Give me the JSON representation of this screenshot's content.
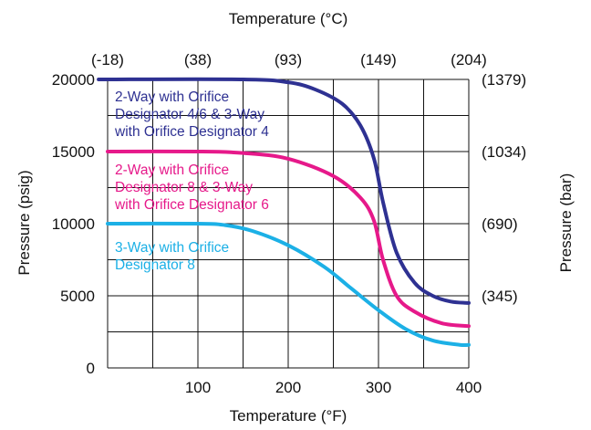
{
  "chart_data": {
    "type": "line",
    "xlabel_bottom": "Temperature (°F)",
    "xlabel_top": "Temperature (°C)",
    "ylabel_left": "Pressure (psig)",
    "ylabel_right": "Pressure (bar)",
    "xlim": [
      0,
      400
    ],
    "ylim": [
      0,
      20000
    ],
    "grid": true,
    "x_ticks_bottom": [
      {
        "value": 100,
        "label": "100"
      },
      {
        "value": 200,
        "label": "200"
      },
      {
        "value": 300,
        "label": "300"
      },
      {
        "value": 400,
        "label": "400"
      }
    ],
    "x_ticks_top": [
      {
        "value": 0,
        "label": "(-18)"
      },
      {
        "value": 100,
        "label": "(38)"
      },
      {
        "value": 200,
        "label": "(93)"
      },
      {
        "value": 300,
        "label": "(149)"
      },
      {
        "value": 400,
        "label": "(204)"
      }
    ],
    "y_ticks_left": [
      {
        "value": 0,
        "label": "0"
      },
      {
        "value": 5000,
        "label": "5000"
      },
      {
        "value": 10000,
        "label": "10000"
      },
      {
        "value": 15000,
        "label": "15000"
      },
      {
        "value": 20000,
        "label": "20000"
      }
    ],
    "y_ticks_right": [
      {
        "value": 5000,
        "label": "(345)"
      },
      {
        "value": 10000,
        "label": "(690)"
      },
      {
        "value": 15000,
        "label": "(1034)"
      },
      {
        "value": 20000,
        "label": "(1379)"
      }
    ],
    "series": [
      {
        "name": "2-Way with Orifice Designator 4/6 & 3-Way with Orifice Designator 4",
        "label_lines": [
          "2-Way with Orifice",
          "Designator 4/6 & 3-Way",
          "with Orifice Designator 4"
        ],
        "color": "#2e3192",
        "x": [
          -10,
          150,
          200,
          230,
          260,
          280,
          295,
          305,
          320,
          340,
          360,
          380,
          400
        ],
        "y": [
          20000,
          20000,
          19800,
          19300,
          18300,
          16800,
          14500,
          11500,
          8000,
          5900,
          5000,
          4600,
          4500
        ]
      },
      {
        "name": "2-Way with Orifice Designator 8 & 3-Way with Orifice Designator 6",
        "label_lines": [
          "2-Way with Orifice",
          "Designator 8 & 3-Way",
          "with Orifice Designator 6"
        ],
        "color": "#e6198a",
        "x": [
          0,
          100,
          150,
          200,
          250,
          280,
          295,
          305,
          320,
          340,
          370,
          400
        ],
        "y": [
          15000,
          15000,
          14900,
          14500,
          13300,
          11800,
          10200,
          7500,
          5000,
          3900,
          3100,
          2900
        ]
      },
      {
        "name": "3-Way with Orifice Designator 8",
        "label_lines": [
          "3-Way with Orifice",
          "Designator 8"
        ],
        "color": "#1cb0e6",
        "x": [
          0,
          100,
          130,
          160,
          200,
          240,
          270,
          300,
          330,
          360,
          390,
          400
        ],
        "y": [
          10000,
          10000,
          9900,
          9500,
          8500,
          7000,
          5500,
          4000,
          2700,
          1900,
          1600,
          1600
        ]
      }
    ]
  }
}
